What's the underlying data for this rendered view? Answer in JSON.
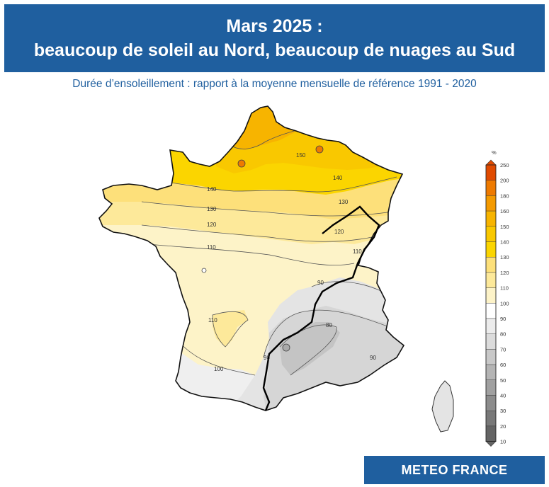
{
  "header": {
    "title_line1": "Mars 2025 :",
    "title_line2": "beaucoup de soleil au Nord, beaucoup de nuages au Sud"
  },
  "subtitle": "Durée d’ensoleillement : rapport à la moyenne mensuelle de référence 1991 - 2020",
  "map": {
    "contour_labels": [
      "150",
      "140",
      "140",
      "130",
      "130",
      "120",
      "120",
      "110",
      "110",
      "110",
      "100",
      "90",
      "90",
      "80",
      "90"
    ],
    "region": "France + Corse"
  },
  "legend": {
    "unit": "%",
    "ticks": [
      "250",
      "200",
      "180",
      "160",
      "150",
      "140",
      "130",
      "120",
      "110",
      "100",
      "90",
      "80",
      "70",
      "60",
      "50",
      "40",
      "30",
      "20",
      "10"
    ],
    "colors": [
      "#e04a00",
      "#ee7a00",
      "#f49a00",
      "#f7b400",
      "#f9c800",
      "#fbd500",
      "#fde07a",
      "#fde99a",
      "#fdf3c8",
      "#ffffff",
      "#ececec",
      "#dcdcdc",
      "#c8c8c8",
      "#b4b4b4",
      "#a0a0a0",
      "#8c8c8c",
      "#787878",
      "#646464"
    ]
  },
  "brand": "METEO FRANCE"
}
